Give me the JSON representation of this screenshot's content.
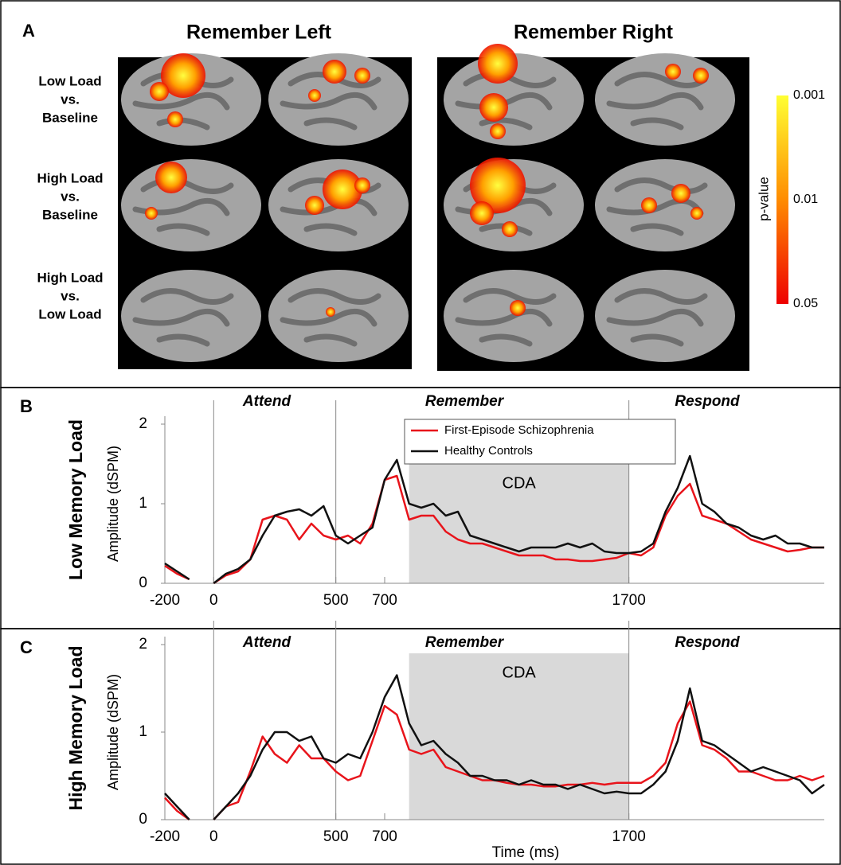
{
  "panel_a": {
    "label": "A",
    "columns": [
      "Remember Left",
      "Remember Right"
    ],
    "rows": [
      [
        "Low Load",
        "vs.",
        "Baseline"
      ],
      [
        "High Load",
        "vs.",
        "Baseline"
      ],
      [
        "High Load",
        "vs.",
        "Low Load"
      ]
    ],
    "colorbar": {
      "label": "p-value",
      "ticks": [
        "0.001",
        "0.01",
        "0.05"
      ]
    }
  },
  "chart_data": [
    {
      "type": "line",
      "panel": "B",
      "title": "Low Memory Load",
      "y_label": "Amplitude (dSPM)",
      "phases": [
        "Attend",
        "Remember",
        "Respond"
      ],
      "shade_label": "CDA",
      "shade_x": [
        800,
        1700
      ],
      "shade_y": [
        0,
        1.5
      ],
      "vlines": [
        0,
        500,
        1700
      ],
      "xlim": [
        -200,
        2500
      ],
      "xticks": [
        -200,
        0,
        500,
        700,
        1700
      ],
      "ylim": [
        0,
        2
      ],
      "yticks": [
        0,
        1,
        2
      ],
      "x": [
        -200,
        -150,
        -100,
        -50,
        0,
        50,
        100,
        150,
        200,
        250,
        300,
        350,
        400,
        450,
        500,
        550,
        600,
        650,
        700,
        750,
        800,
        850,
        900,
        950,
        1000,
        1050,
        1100,
        1150,
        1200,
        1250,
        1300,
        1350,
        1400,
        1450,
        1500,
        1550,
        1600,
        1650,
        1700,
        1750,
        1800,
        1850,
        1900,
        1950,
        2000,
        2050,
        2100,
        2150,
        2200,
        2250,
        2300,
        2350,
        2400,
        2450,
        2500
      ],
      "series": [
        {
          "name": "First-Episode Schizophrenia",
          "color": "#e8141b",
          "values": [
            0.22,
            0.12,
            0.05,
            null,
            0.0,
            0.1,
            0.15,
            0.3,
            0.8,
            0.85,
            0.8,
            0.55,
            0.75,
            0.6,
            0.55,
            0.6,
            0.5,
            0.75,
            1.3,
            1.35,
            0.8,
            0.85,
            0.85,
            0.65,
            0.55,
            0.5,
            0.5,
            0.45,
            0.4,
            0.35,
            0.35,
            0.35,
            0.3,
            0.3,
            0.28,
            0.28,
            0.3,
            0.32,
            0.38,
            0.35,
            0.45,
            0.85,
            1.1,
            1.25,
            0.85,
            0.8,
            0.75,
            0.65,
            0.55,
            0.5,
            0.45,
            0.4,
            0.42,
            0.45,
            0.45
          ]
        },
        {
          "name": "Healthy Controls",
          "color": "#111111",
          "values": [
            0.25,
            0.15,
            0.05,
            null,
            0.0,
            0.12,
            0.18,
            0.3,
            0.6,
            0.85,
            0.9,
            0.93,
            0.85,
            0.97,
            0.6,
            0.5,
            0.6,
            0.7,
            1.3,
            1.55,
            1.0,
            0.95,
            1.0,
            0.85,
            0.9,
            0.6,
            0.55,
            0.5,
            0.45,
            0.4,
            0.45,
            0.45,
            0.45,
            0.5,
            0.45,
            0.5,
            0.4,
            0.38,
            0.38,
            0.4,
            0.5,
            0.9,
            1.2,
            1.6,
            1.0,
            0.9,
            0.75,
            0.7,
            0.6,
            0.55,
            0.6,
            0.5,
            0.5,
            0.45,
            0.45
          ]
        }
      ]
    },
    {
      "type": "line",
      "panel": "C",
      "title": "High Memory Load",
      "y_label": "Amplitude (dSPM)",
      "x_label": "Time (ms)",
      "phases": [
        "Attend",
        "Remember",
        "Respond"
      ],
      "shade_label": "CDA",
      "shade_x": [
        800,
        1700
      ],
      "shade_y": [
        0,
        1.9
      ],
      "vlines": [
        0,
        500,
        1700
      ],
      "xlim": [
        -200,
        2500
      ],
      "xticks": [
        -200,
        0,
        500,
        700,
        1700
      ],
      "ylim": [
        0,
        2
      ],
      "yticks": [
        0,
        1,
        2
      ],
      "x": [
        -200,
        -150,
        -100,
        -50,
        0,
        50,
        100,
        150,
        200,
        250,
        300,
        350,
        400,
        450,
        500,
        550,
        600,
        650,
        700,
        750,
        800,
        850,
        900,
        950,
        1000,
        1050,
        1100,
        1150,
        1200,
        1250,
        1300,
        1350,
        1400,
        1450,
        1500,
        1550,
        1600,
        1650,
        1700,
        1750,
        1800,
        1850,
        1900,
        1950,
        2000,
        2050,
        2100,
        2150,
        2200,
        2250,
        2300,
        2350,
        2400,
        2450,
        2500
      ],
      "series": [
        {
          "color": "#e8141b",
          "values": [
            0.25,
            0.1,
            0.0,
            null,
            0.0,
            0.15,
            0.2,
            0.55,
            0.95,
            0.75,
            0.65,
            0.85,
            0.7,
            0.7,
            0.55,
            0.45,
            0.5,
            0.9,
            1.3,
            1.2,
            0.8,
            0.75,
            0.8,
            0.6,
            0.55,
            0.5,
            0.45,
            0.45,
            0.42,
            0.4,
            0.4,
            0.38,
            0.38,
            0.4,
            0.4,
            0.42,
            0.4,
            0.42,
            0.42,
            0.42,
            0.5,
            0.65,
            1.1,
            1.35,
            0.85,
            0.8,
            0.7,
            0.55,
            0.55,
            0.5,
            0.45,
            0.45,
            0.5,
            0.45,
            0.5
          ]
        },
        {
          "color": "#111111",
          "values": [
            0.3,
            0.15,
            0.0,
            null,
            0.0,
            0.15,
            0.3,
            0.5,
            0.8,
            1.0,
            1.0,
            0.9,
            0.95,
            0.7,
            0.65,
            0.75,
            0.7,
            1.0,
            1.4,
            1.65,
            1.1,
            0.85,
            0.9,
            0.75,
            0.65,
            0.5,
            0.5,
            0.45,
            0.45,
            0.4,
            0.45,
            0.4,
            0.4,
            0.35,
            0.4,
            0.35,
            0.3,
            0.32,
            0.3,
            0.3,
            0.4,
            0.55,
            0.9,
            1.5,
            0.9,
            0.85,
            0.75,
            0.65,
            0.55,
            0.6,
            0.55,
            0.5,
            0.45,
            0.3,
            0.4
          ]
        }
      ]
    }
  ]
}
